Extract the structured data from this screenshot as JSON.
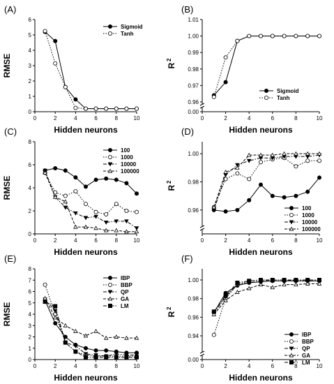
{
  "chart_data": [
    {
      "panel": "(A)",
      "type": "line",
      "xlabel": "Hidden neurons",
      "ylabel": "RMSE",
      "xlim": [
        0,
        10
      ],
      "ylim": [
        0,
        6
      ],
      "xticks": [
        "0",
        "2",
        "4",
        "6",
        "8",
        "10"
      ],
      "yticks": [
        "0",
        "1",
        "2",
        "3",
        "4",
        "5",
        "6"
      ],
      "x": [
        1,
        2,
        3,
        4,
        5,
        6,
        7,
        8,
        9,
        10
      ],
      "legend": "top-right",
      "series": [
        {
          "name": "Sigmoid",
          "marker": "filled-circle",
          "dash": "solid",
          "values": [
            5.2,
            4.6,
            1.6,
            0.8,
            0.2,
            0.2,
            0.2,
            0.2,
            0.2,
            0.2
          ]
        },
        {
          "name": "Tanh",
          "marker": "open-circle",
          "dash": "dotted",
          "values": [
            5.25,
            3.15,
            1.6,
            0.25,
            0.2,
            0.2,
            0.2,
            0.2,
            0.2,
            0.2
          ]
        }
      ]
    },
    {
      "panel": "(B)",
      "type": "line",
      "xlabel": "Hidden neurons",
      "ylabel": "R²",
      "xlim": [
        0,
        10
      ],
      "ylim": [
        0.96,
        1.01
      ],
      "break": true,
      "xticks": [
        "0",
        "2",
        "4",
        "6",
        "8",
        "10"
      ],
      "yticks": [
        "0.96",
        "0.97",
        "0.98",
        "0.99",
        "1.00",
        "1.01"
      ],
      "bottom_tick": "0.00",
      "x": [
        1,
        2,
        3,
        4,
        5,
        6,
        7,
        8,
        9,
        10
      ],
      "legend": "bottom-right",
      "series": [
        {
          "name": "Sigmoid",
          "marker": "filled-circle",
          "dash": "solid",
          "values": [
            0.964,
            0.972,
            0.997,
            1.0,
            1.0,
            1.0,
            1.0,
            1.0,
            1.0,
            1.0
          ]
        },
        {
          "name": "Tanh",
          "marker": "open-circle",
          "dash": "dotted",
          "values": [
            0.963,
            0.987,
            0.997,
            1.0,
            1.0,
            1.0,
            1.0,
            1.0,
            1.0,
            1.0
          ]
        }
      ]
    },
    {
      "panel": "(C)",
      "type": "line",
      "xlabel": "Hidden neurons",
      "ylabel": "RMSE",
      "xlim": [
        0,
        10
      ],
      "ylim": [
        0,
        8
      ],
      "xticks": [
        "0",
        "2",
        "4",
        "6",
        "8",
        "10"
      ],
      "yticks": [
        "0",
        "2",
        "4",
        "6",
        "8"
      ],
      "x": [
        1,
        2,
        3,
        4,
        5,
        6,
        7,
        8,
        9,
        10
      ],
      "legend": "top-right",
      "series": [
        {
          "name": "100",
          "marker": "filled-circle",
          "dash": "solid",
          "values": [
            5.5,
            5.7,
            5.5,
            4.9,
            4.1,
            4.7,
            4.8,
            4.7,
            4.4,
            3.5
          ]
        },
        {
          "name": "1000",
          "marker": "open-circle",
          "dash": "dotted",
          "values": [
            5.3,
            3.6,
            3.3,
            3.7,
            2.6,
            1.9,
            1.7,
            2.6,
            2.0,
            1.9
          ]
        },
        {
          "name": "10000",
          "marker": "filled-triangle-down",
          "dash": "dashdot",
          "values": [
            5.5,
            3.2,
            2.3,
            1.8,
            1.4,
            1.5,
            1.0,
            1.1,
            1.1,
            0.5
          ]
        },
        {
          "name": "100000",
          "marker": "open-triangle",
          "dash": "dashed",
          "values": [
            5.3,
            3.2,
            2.8,
            0.6,
            0.6,
            0.5,
            0.3,
            0.3,
            0.2,
            0.2
          ]
        }
      ]
    },
    {
      "panel": "(D)",
      "type": "line",
      "xlabel": "Hidden neurons",
      "ylabel": "R²",
      "xlim": [
        0,
        10
      ],
      "ylim": [
        0.95,
        1.0085
      ],
      "break": true,
      "xticks": [
        "0",
        "2",
        "4",
        "6",
        "8",
        "10"
      ],
      "yticks": [
        "0.96",
        "0.98",
        "1.00"
      ],
      "x": [
        1,
        2,
        3,
        4,
        5,
        6,
        7,
        8,
        9,
        10
      ],
      "legend": "bottom-right",
      "series": [
        {
          "name": "100",
          "marker": "filled-circle",
          "dash": "solid",
          "values": [
            0.96,
            0.959,
            0.96,
            0.967,
            0.978,
            0.97,
            0.969,
            0.97,
            0.973,
            0.983
          ]
        },
        {
          "name": "1000",
          "marker": "open-circle",
          "dash": "dotted",
          "values": [
            0.962,
            0.982,
            0.986,
            0.982,
            0.994,
            0.996,
            0.997,
            0.991,
            0.995,
            0.995
          ]
        },
        {
          "name": "10000",
          "marker": "filled-triangle-down",
          "dash": "dashdot",
          "values": [
            0.96,
            0.985,
            0.992,
            0.995,
            0.997,
            0.997,
            0.998,
            0.998,
            0.998,
            0.999
          ]
        },
        {
          "name": "100000",
          "marker": "open-triangle",
          "dash": "dashed",
          "values": [
            0.962,
            0.987,
            0.99,
            0.999,
            0.999,
            0.999,
            1.0,
            1.0,
            1.0,
            1.0
          ]
        }
      ]
    },
    {
      "panel": "(E)",
      "type": "line",
      "xlabel": "Hidden neurons",
      "ylabel": "RMSE",
      "xlim": [
        0,
        10
      ],
      "ylim": [
        0,
        8
      ],
      "xticks": [
        "0",
        "2",
        "4",
        "6",
        "8",
        "10"
      ],
      "yticks": [
        "0",
        "1",
        "2",
        "3",
        "4",
        "5",
        "6",
        "7",
        "8"
      ],
      "x": [
        1,
        2,
        3,
        4,
        5,
        6,
        7,
        8,
        9,
        10
      ],
      "legend": "top-right",
      "series": [
        {
          "name": "IBP",
          "marker": "filled-circle",
          "dash": "solid",
          "values": [
            5.2,
            3.2,
            2.0,
            1.3,
            1.0,
            0.8,
            0.8,
            0.7,
            0.6,
            0.6
          ]
        },
        {
          "name": "BBP",
          "marker": "open-circle",
          "dash": "dotted",
          "values": [
            6.6,
            4.0,
            1.5,
            0.7,
            0.4,
            0.3,
            0.3,
            0.3,
            0.3,
            0.3
          ]
        },
        {
          "name": "QP",
          "marker": "filled-triangle-down",
          "dash": "dashdot",
          "values": [
            5.3,
            4.3,
            1.5,
            1.2,
            0.5,
            0.4,
            0.3,
            0.5,
            0.4,
            0.4
          ]
        },
        {
          "name": "GA",
          "marker": "open-triangle",
          "dash": "dashed",
          "values": [
            5.4,
            3.7,
            3.0,
            2.5,
            2.1,
            2.5,
            1.9,
            2.0,
            1.9,
            1.9
          ]
        },
        {
          "name": "LM",
          "marker": "filled-square",
          "dash": "dashdot",
          "values": [
            5.1,
            4.7,
            1.5,
            0.7,
            0.2,
            0.2,
            0.2,
            0.2,
            0.2,
            0.2
          ]
        }
      ]
    },
    {
      "panel": "(F)",
      "type": "line",
      "xlabel": "Hidden neurons",
      "ylabel": "R²",
      "xlim": [
        0,
        10
      ],
      "ylim": [
        0.925,
        1.012
      ],
      "break": true,
      "xticks": [
        "0",
        "2",
        "4",
        "6",
        "8",
        "10"
      ],
      "yticks": [
        "0.94",
        "0.96",
        "0.98",
        "1.00"
      ],
      "bottom_tick": "0.00",
      "x": [
        1,
        2,
        3,
        4,
        5,
        6,
        7,
        8,
        9,
        10
      ],
      "legend": "bottom-right",
      "series": [
        {
          "name": "IBP",
          "marker": "filled-circle",
          "dash": "solid",
          "values": [
            0.965,
            0.986,
            0.994,
            0.997,
            0.998,
            0.999,
            0.999,
            0.999,
            0.999,
            0.999
          ]
        },
        {
          "name": "BBP",
          "marker": "open-circle",
          "dash": "dotted",
          "values": [
            0.941,
            0.98,
            0.995,
            0.999,
            1.0,
            1.0,
            1.0,
            1.0,
            1.0,
            1.0
          ]
        },
        {
          "name": "QP",
          "marker": "filled-triangle-down",
          "dash": "dashdot",
          "values": [
            0.964,
            0.982,
            0.995,
            0.997,
            0.999,
            1.0,
            1.0,
            0.999,
            0.999,
            0.999
          ]
        },
        {
          "name": "GA",
          "marker": "open-triangle",
          "dash": "dashed",
          "values": [
            0.963,
            0.978,
            0.987,
            0.991,
            0.995,
            0.992,
            0.995,
            0.995,
            0.996,
            0.996
          ]
        },
        {
          "name": "LM",
          "marker": "filled-square",
          "dash": "dashdot",
          "values": [
            0.966,
            0.983,
            0.997,
            0.999,
            1.0,
            1.0,
            1.0,
            1.0,
            1.0,
            1.0
          ]
        }
      ]
    }
  ]
}
